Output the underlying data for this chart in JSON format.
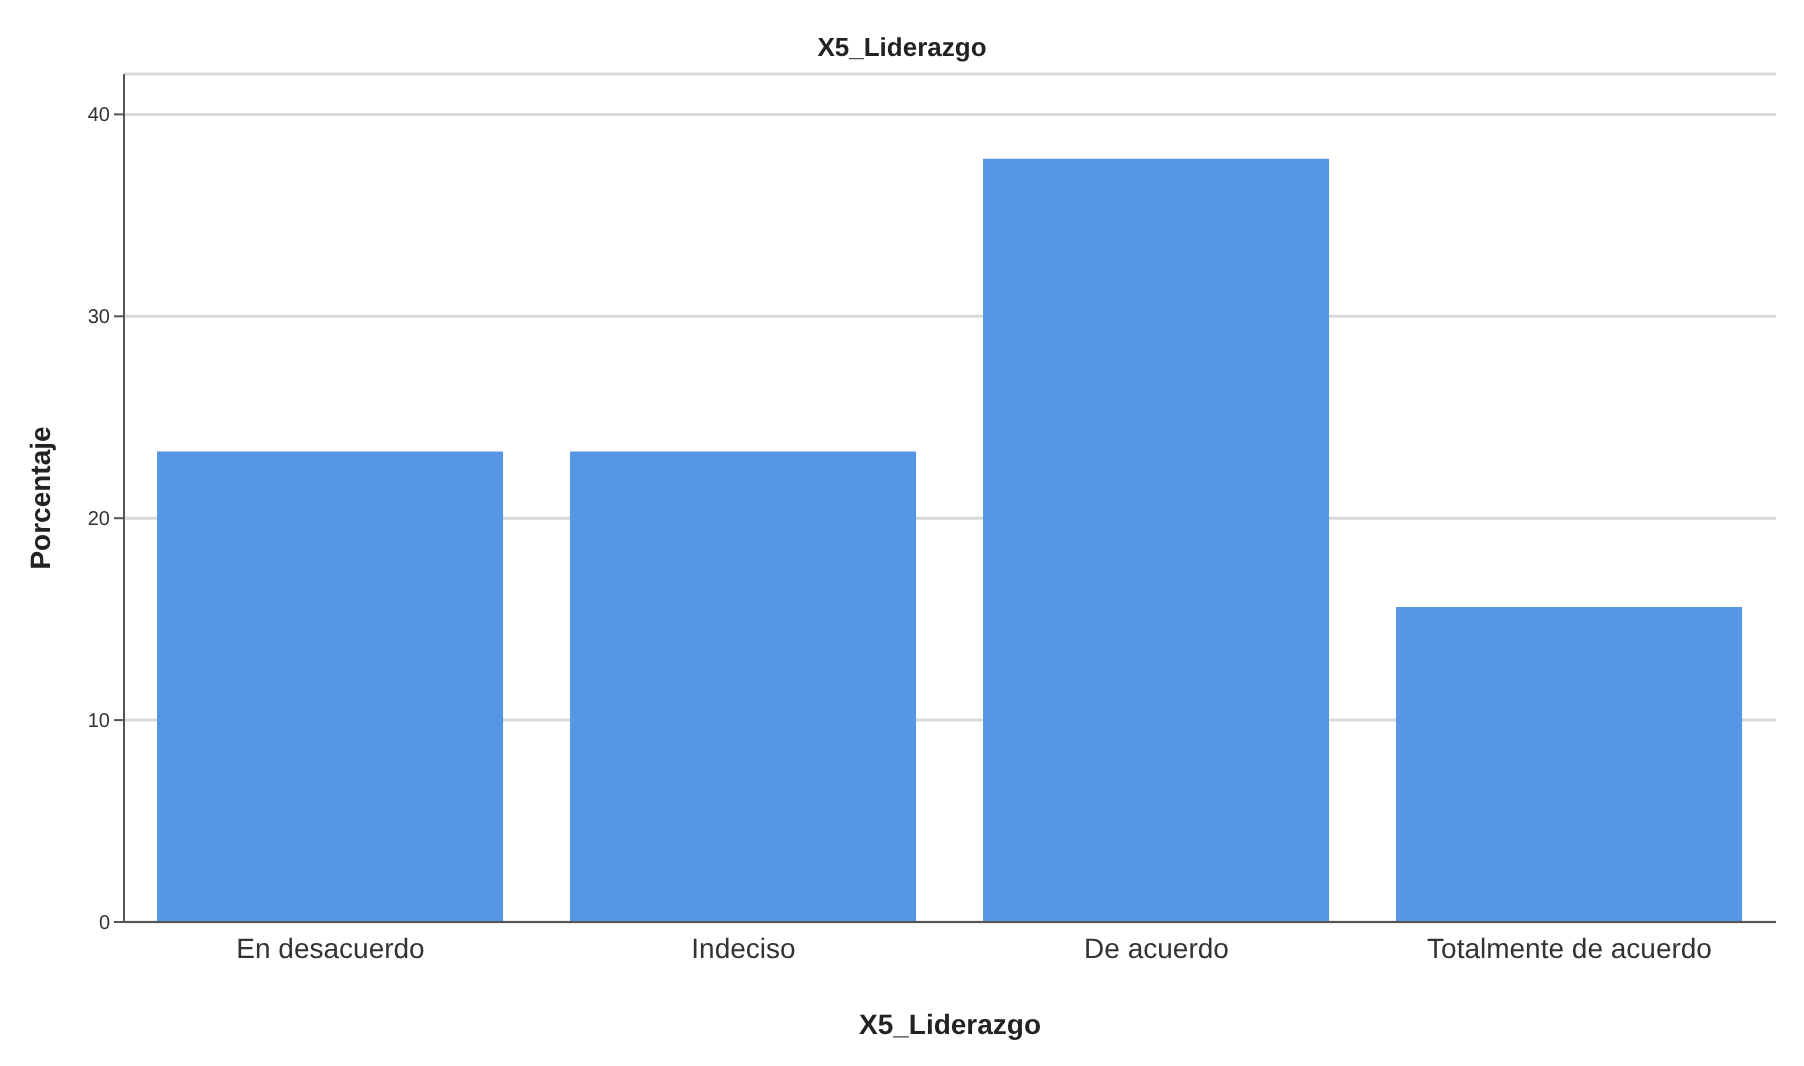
{
  "chart_data": {
    "type": "bar",
    "title": "X5_Liderazgo",
    "xlabel": "X5_Liderazgo",
    "ylabel": "Porcentaje",
    "categories": [
      "En desacuerdo",
      "Indeciso",
      "De acuerdo",
      "Totalmente de acuerdo"
    ],
    "values": [
      23.3,
      23.3,
      37.8,
      15.6
    ],
    "color": "#5596e6",
    "ylim": [
      0,
      42
    ],
    "yticks": [
      0,
      10,
      20,
      30,
      40
    ],
    "grid": "y"
  }
}
